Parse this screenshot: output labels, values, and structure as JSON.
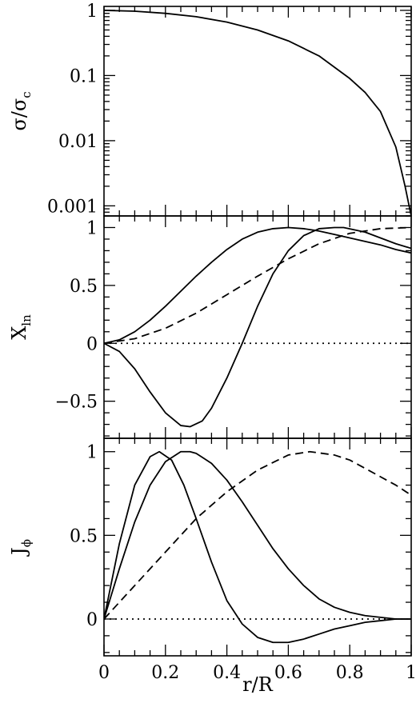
{
  "chart_data": [
    {
      "type": "line",
      "ylabel": "σ/σc",
      "ylabel_main": "σ/σ",
      "ylabel_sub": "c",
      "yscale": "log",
      "xlim": [
        0,
        1
      ],
      "ylim": [
        0.0007,
        1.15
      ],
      "yticks": [
        1,
        0.1,
        0.01,
        0.001
      ],
      "ytick_labels": [
        "1",
        "0.1",
        "0.01",
        "0.001"
      ],
      "series": [
        {
          "style": "solid",
          "x": [
            0,
            0.1,
            0.2,
            0.3,
            0.4,
            0.5,
            0.6,
            0.7,
            0.8,
            0.85,
            0.9,
            0.95,
            0.98,
            1.0
          ],
          "y": [
            1.0,
            0.97,
            0.9,
            0.8,
            0.66,
            0.5,
            0.34,
            0.2,
            0.09,
            0.055,
            0.028,
            0.008,
            0.002,
            0.0007
          ]
        }
      ]
    },
    {
      "type": "line",
      "ylabel": "Xln",
      "ylabel_main": "X",
      "ylabel_sub": "ln",
      "xlim": [
        0,
        1
      ],
      "ylim": [
        -0.82,
        1.1
      ],
      "yticks": [
        1,
        0.5,
        0,
        -0.5
      ],
      "ytick_labels": [
        "1",
        "0.5",
        "0",
        "−0.5"
      ],
      "series": [
        {
          "style": "solid",
          "x": [
            0,
            0.05,
            0.1,
            0.15,
            0.2,
            0.25,
            0.3,
            0.35,
            0.4,
            0.45,
            0.5,
            0.55,
            0.6,
            0.65,
            0.7,
            0.75,
            0.8,
            0.85,
            0.9,
            0.95,
            1.0
          ],
          "y": [
            0,
            0.03,
            0.1,
            0.2,
            0.32,
            0.45,
            0.58,
            0.7,
            0.81,
            0.9,
            0.96,
            0.99,
            1.0,
            0.99,
            0.97,
            0.94,
            0.91,
            0.88,
            0.85,
            0.81,
            0.78
          ]
        },
        {
          "style": "solid",
          "x": [
            0,
            0.05,
            0.1,
            0.15,
            0.2,
            0.25,
            0.28,
            0.32,
            0.35,
            0.4,
            0.45,
            0.5,
            0.55,
            0.6,
            0.65,
            0.7,
            0.75,
            0.78,
            0.85,
            0.9,
            0.95,
            1.0
          ],
          "y": [
            0,
            -0.07,
            -0.22,
            -0.42,
            -0.6,
            -0.71,
            -0.72,
            -0.67,
            -0.56,
            -0.3,
            0.0,
            0.32,
            0.6,
            0.8,
            0.93,
            0.99,
            1.0,
            1.0,
            0.96,
            0.91,
            0.86,
            0.82
          ]
        },
        {
          "style": "dashed",
          "x": [
            0,
            0.1,
            0.2,
            0.3,
            0.4,
            0.5,
            0.6,
            0.7,
            0.8,
            0.9,
            1.0
          ],
          "y": [
            0,
            0.04,
            0.13,
            0.26,
            0.42,
            0.58,
            0.73,
            0.86,
            0.95,
            0.99,
            1.0
          ]
        },
        {
          "style": "dotted",
          "x": [
            0,
            1.0
          ],
          "y": [
            0,
            0
          ]
        }
      ]
    },
    {
      "type": "line",
      "ylabel": "Jϕ",
      "ylabel_main": "J",
      "ylabel_sub": "ϕ",
      "xlabel": "r/R",
      "xlim": [
        0,
        1
      ],
      "ylim": [
        -0.22,
        1.08
      ],
      "yticks": [
        1,
        0.5,
        0
      ],
      "ytick_labels": [
        "1",
        "0.5",
        "0"
      ],
      "xticks": [
        0,
        0.2,
        0.4,
        0.6,
        0.8,
        1
      ],
      "xtick_labels": [
        "0",
        "0.2",
        "0.4",
        "0.6",
        "0.8",
        "1"
      ],
      "series": [
        {
          "style": "solid",
          "x": [
            0,
            0.05,
            0.1,
            0.15,
            0.18,
            0.22,
            0.26,
            0.3,
            0.35,
            0.4,
            0.45,
            0.5,
            0.55,
            0.6,
            0.65,
            0.7,
            0.75,
            0.8,
            0.85,
            0.9,
            0.95,
            1.0
          ],
          "y": [
            0,
            0.45,
            0.8,
            0.97,
            1.0,
            0.95,
            0.8,
            0.6,
            0.34,
            0.11,
            -0.03,
            -0.11,
            -0.14,
            -0.14,
            -0.12,
            -0.09,
            -0.06,
            -0.04,
            -0.02,
            -0.01,
            0.0,
            0.0
          ]
        },
        {
          "style": "solid",
          "x": [
            0,
            0.05,
            0.1,
            0.15,
            0.2,
            0.25,
            0.28,
            0.3,
            0.35,
            0.4,
            0.45,
            0.5,
            0.55,
            0.6,
            0.65,
            0.7,
            0.75,
            0.8,
            0.85,
            0.9,
            0.95,
            1.0
          ],
          "y": [
            0,
            0.3,
            0.58,
            0.8,
            0.94,
            1.0,
            1.0,
            0.99,
            0.93,
            0.83,
            0.7,
            0.56,
            0.42,
            0.3,
            0.2,
            0.12,
            0.07,
            0.04,
            0.02,
            0.01,
            0.0,
            0.0
          ]
        },
        {
          "style": "dashed",
          "x": [
            0,
            0.1,
            0.2,
            0.3,
            0.4,
            0.5,
            0.6,
            0.67,
            0.75,
            0.8,
            0.85,
            0.9,
            0.95,
            1.0
          ],
          "y": [
            0,
            0.2,
            0.4,
            0.6,
            0.76,
            0.89,
            0.98,
            1.0,
            0.98,
            0.95,
            0.9,
            0.85,
            0.8,
            0.74
          ]
        },
        {
          "style": "dotted",
          "x": [
            0,
            1.0
          ],
          "y": [
            0,
            0
          ]
        }
      ]
    }
  ]
}
